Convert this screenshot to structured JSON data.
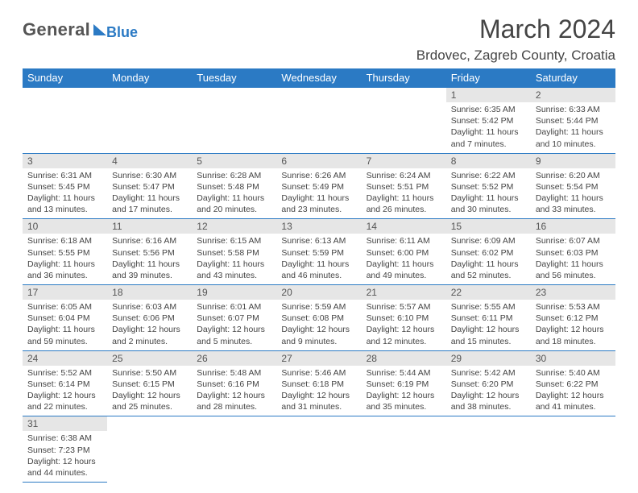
{
  "logo": {
    "text1": "General",
    "text2": "Blue"
  },
  "title": "March 2024",
  "location": "Brdovec, Zagreb County, Croatia",
  "colors": {
    "header_bg": "#2b7ac4",
    "daybar_bg": "#e6e6e6",
    "border": "#2b7ac4",
    "text": "#444444"
  },
  "day_headers": [
    "Sunday",
    "Monday",
    "Tuesday",
    "Wednesday",
    "Thursday",
    "Friday",
    "Saturday"
  ],
  "weeks": [
    [
      null,
      null,
      null,
      null,
      null,
      {
        "num": "1",
        "sunrise": "Sunrise: 6:35 AM",
        "sunset": "Sunset: 5:42 PM",
        "daylight": "Daylight: 11 hours and 7 minutes."
      },
      {
        "num": "2",
        "sunrise": "Sunrise: 6:33 AM",
        "sunset": "Sunset: 5:44 PM",
        "daylight": "Daylight: 11 hours and 10 minutes."
      }
    ],
    [
      {
        "num": "3",
        "sunrise": "Sunrise: 6:31 AM",
        "sunset": "Sunset: 5:45 PM",
        "daylight": "Daylight: 11 hours and 13 minutes."
      },
      {
        "num": "4",
        "sunrise": "Sunrise: 6:30 AM",
        "sunset": "Sunset: 5:47 PM",
        "daylight": "Daylight: 11 hours and 17 minutes."
      },
      {
        "num": "5",
        "sunrise": "Sunrise: 6:28 AM",
        "sunset": "Sunset: 5:48 PM",
        "daylight": "Daylight: 11 hours and 20 minutes."
      },
      {
        "num": "6",
        "sunrise": "Sunrise: 6:26 AM",
        "sunset": "Sunset: 5:49 PM",
        "daylight": "Daylight: 11 hours and 23 minutes."
      },
      {
        "num": "7",
        "sunrise": "Sunrise: 6:24 AM",
        "sunset": "Sunset: 5:51 PM",
        "daylight": "Daylight: 11 hours and 26 minutes."
      },
      {
        "num": "8",
        "sunrise": "Sunrise: 6:22 AM",
        "sunset": "Sunset: 5:52 PM",
        "daylight": "Daylight: 11 hours and 30 minutes."
      },
      {
        "num": "9",
        "sunrise": "Sunrise: 6:20 AM",
        "sunset": "Sunset: 5:54 PM",
        "daylight": "Daylight: 11 hours and 33 minutes."
      }
    ],
    [
      {
        "num": "10",
        "sunrise": "Sunrise: 6:18 AM",
        "sunset": "Sunset: 5:55 PM",
        "daylight": "Daylight: 11 hours and 36 minutes."
      },
      {
        "num": "11",
        "sunrise": "Sunrise: 6:16 AM",
        "sunset": "Sunset: 5:56 PM",
        "daylight": "Daylight: 11 hours and 39 minutes."
      },
      {
        "num": "12",
        "sunrise": "Sunrise: 6:15 AM",
        "sunset": "Sunset: 5:58 PM",
        "daylight": "Daylight: 11 hours and 43 minutes."
      },
      {
        "num": "13",
        "sunrise": "Sunrise: 6:13 AM",
        "sunset": "Sunset: 5:59 PM",
        "daylight": "Daylight: 11 hours and 46 minutes."
      },
      {
        "num": "14",
        "sunrise": "Sunrise: 6:11 AM",
        "sunset": "Sunset: 6:00 PM",
        "daylight": "Daylight: 11 hours and 49 minutes."
      },
      {
        "num": "15",
        "sunrise": "Sunrise: 6:09 AM",
        "sunset": "Sunset: 6:02 PM",
        "daylight": "Daylight: 11 hours and 52 minutes."
      },
      {
        "num": "16",
        "sunrise": "Sunrise: 6:07 AM",
        "sunset": "Sunset: 6:03 PM",
        "daylight": "Daylight: 11 hours and 56 minutes."
      }
    ],
    [
      {
        "num": "17",
        "sunrise": "Sunrise: 6:05 AM",
        "sunset": "Sunset: 6:04 PM",
        "daylight": "Daylight: 11 hours and 59 minutes."
      },
      {
        "num": "18",
        "sunrise": "Sunrise: 6:03 AM",
        "sunset": "Sunset: 6:06 PM",
        "daylight": "Daylight: 12 hours and 2 minutes."
      },
      {
        "num": "19",
        "sunrise": "Sunrise: 6:01 AM",
        "sunset": "Sunset: 6:07 PM",
        "daylight": "Daylight: 12 hours and 5 minutes."
      },
      {
        "num": "20",
        "sunrise": "Sunrise: 5:59 AM",
        "sunset": "Sunset: 6:08 PM",
        "daylight": "Daylight: 12 hours and 9 minutes."
      },
      {
        "num": "21",
        "sunrise": "Sunrise: 5:57 AM",
        "sunset": "Sunset: 6:10 PM",
        "daylight": "Daylight: 12 hours and 12 minutes."
      },
      {
        "num": "22",
        "sunrise": "Sunrise: 5:55 AM",
        "sunset": "Sunset: 6:11 PM",
        "daylight": "Daylight: 12 hours and 15 minutes."
      },
      {
        "num": "23",
        "sunrise": "Sunrise: 5:53 AM",
        "sunset": "Sunset: 6:12 PM",
        "daylight": "Daylight: 12 hours and 18 minutes."
      }
    ],
    [
      {
        "num": "24",
        "sunrise": "Sunrise: 5:52 AM",
        "sunset": "Sunset: 6:14 PM",
        "daylight": "Daylight: 12 hours and 22 minutes."
      },
      {
        "num": "25",
        "sunrise": "Sunrise: 5:50 AM",
        "sunset": "Sunset: 6:15 PM",
        "daylight": "Daylight: 12 hours and 25 minutes."
      },
      {
        "num": "26",
        "sunrise": "Sunrise: 5:48 AM",
        "sunset": "Sunset: 6:16 PM",
        "daylight": "Daylight: 12 hours and 28 minutes."
      },
      {
        "num": "27",
        "sunrise": "Sunrise: 5:46 AM",
        "sunset": "Sunset: 6:18 PM",
        "daylight": "Daylight: 12 hours and 31 minutes."
      },
      {
        "num": "28",
        "sunrise": "Sunrise: 5:44 AM",
        "sunset": "Sunset: 6:19 PM",
        "daylight": "Daylight: 12 hours and 35 minutes."
      },
      {
        "num": "29",
        "sunrise": "Sunrise: 5:42 AM",
        "sunset": "Sunset: 6:20 PM",
        "daylight": "Daylight: 12 hours and 38 minutes."
      },
      {
        "num": "30",
        "sunrise": "Sunrise: 5:40 AM",
        "sunset": "Sunset: 6:22 PM",
        "daylight": "Daylight: 12 hours and 41 minutes."
      }
    ],
    [
      {
        "num": "31",
        "sunrise": "Sunrise: 6:38 AM",
        "sunset": "Sunset: 7:23 PM",
        "daylight": "Daylight: 12 hours and 44 minutes."
      },
      null,
      null,
      null,
      null,
      null,
      null
    ]
  ]
}
